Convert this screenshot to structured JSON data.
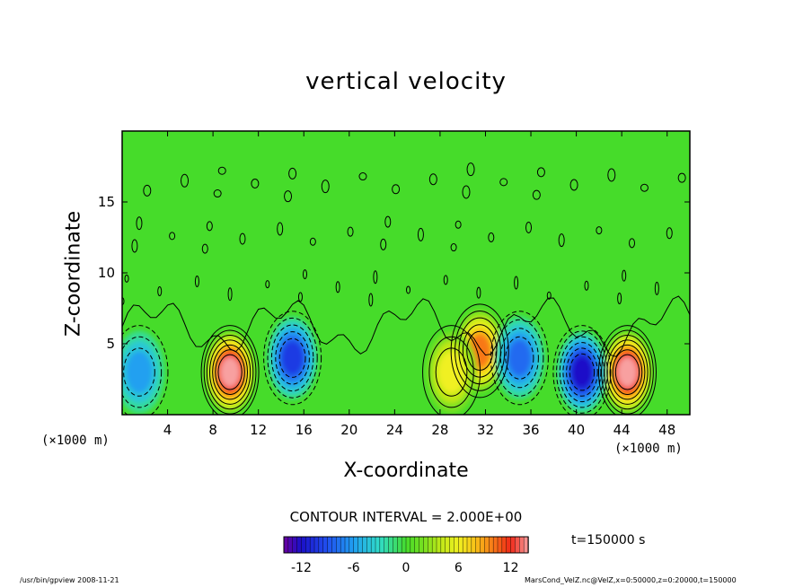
{
  "chart_data": {
    "type": "heatmap",
    "title": "vertical velocity",
    "xlabel": "X-coordinate",
    "ylabel": "Z-coordinate",
    "x_unit_left": "(×1000 m)",
    "x_unit_right": "(×1000 m)",
    "xlim": [
      0,
      50
    ],
    "ylim": [
      0,
      20
    ],
    "x_ticks": [
      4,
      8,
      12,
      16,
      20,
      24,
      28,
      32,
      36,
      40,
      44,
      48
    ],
    "y_ticks": [
      5,
      10,
      15
    ],
    "contour_interval": "CONTOUR INTERVAL = 2.000E+00",
    "colorbar": {
      "min": -14,
      "max": 14,
      "ticks": [
        -12,
        -6,
        0,
        6,
        12
      ]
    },
    "time_label": "t=150000 s",
    "features": [
      {
        "x": 9.5,
        "z": 3.0,
        "peak": 13
      },
      {
        "x": 44.5,
        "z": 3.0,
        "peak": 14
      },
      {
        "x": 31.5,
        "z": 4.5,
        "peak": 9
      },
      {
        "x": 29,
        "z": 3.0,
        "peak": 6
      },
      {
        "x": 15,
        "z": 4.0,
        "peak": -10
      },
      {
        "x": 40.5,
        "z": 3.0,
        "peak": -12
      },
      {
        "x": 35,
        "z": 4.0,
        "peak": -7
      },
      {
        "x": 1.5,
        "z": 3.0,
        "peak": -6
      }
    ]
  },
  "footer": {
    "left": "/usr/bin/gpview   2008-11-21",
    "right": "MarsCond_VelZ.nc@VelZ,x=0:50000,z=0:20000,t=150000"
  },
  "colors": {
    "background_field": "#44dd22",
    "frame": "#000000"
  }
}
